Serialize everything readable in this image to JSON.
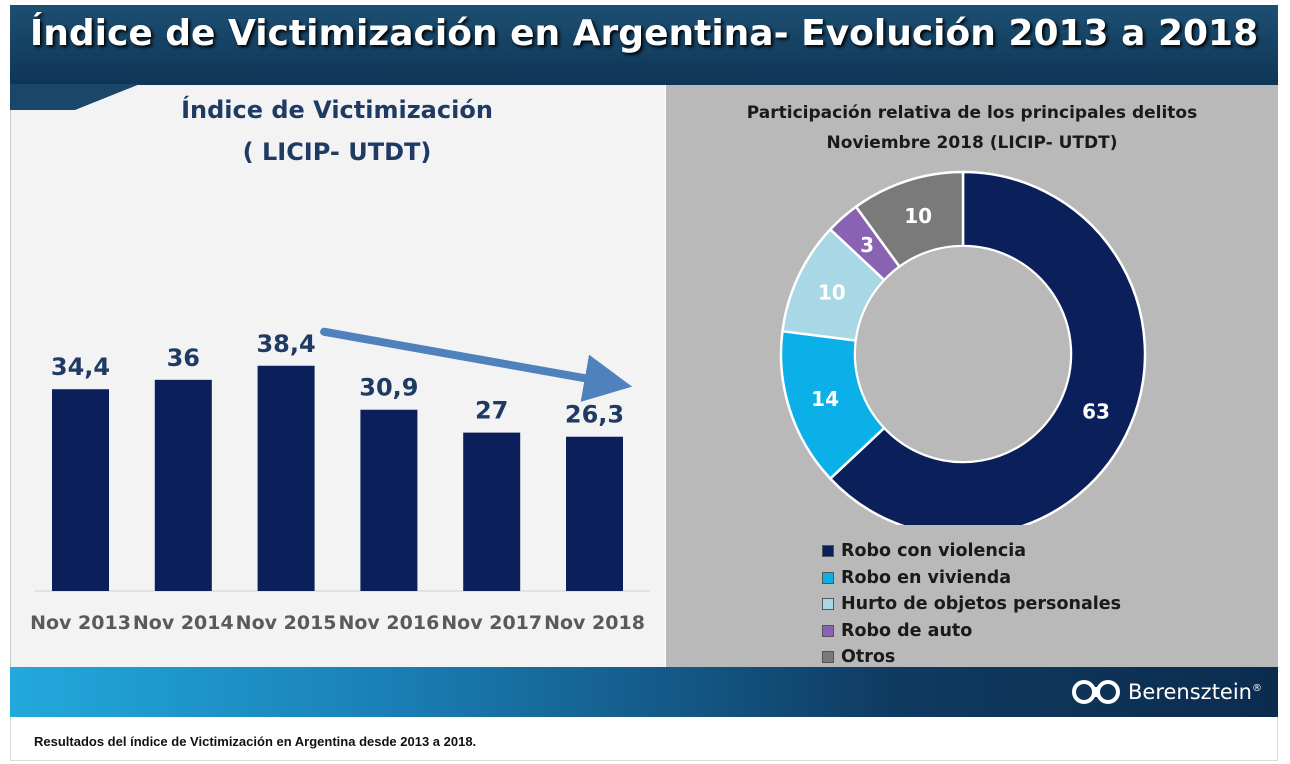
{
  "header": {
    "title": "Índice de Victimización en Argentina- Evolución 2013 a 2018"
  },
  "caption": "Resultados del índice de Victimización en Argentina desde 2013 a 2018.",
  "logo": {
    "text": "Berensztein",
    "mark": "®"
  },
  "colors": {
    "header": "#123f63",
    "bar": "#0b1f5b",
    "left_panel": "#f3f3f4",
    "right_panel": "#b9b9ba",
    "arrow": "#4f81bd"
  },
  "chart_data": [
    {
      "type": "bar",
      "title": "Índice de Victimización",
      "subtitle": "( LICIP- UTDT)",
      "categories": [
        "Nov 2013",
        "Nov 2014",
        "Nov 2015",
        "Nov 2016",
        "Nov 2017",
        "Nov 2018"
      ],
      "values": [
        34.4,
        36,
        38.4,
        30.9,
        27,
        26.3
      ],
      "value_labels": [
        "34,4",
        "36",
        "38,4",
        "30,9",
        "27",
        "26,3"
      ],
      "ylim": [
        0,
        45
      ],
      "grid": false,
      "annotation": "trend-arrow-down",
      "colors": [
        "#0b1f5b"
      ]
    },
    {
      "type": "pie",
      "variant": "donut",
      "title": "Participación relativa de los principales delitos",
      "subtitle": "Noviembre 2018 (LICIP- UTDT)",
      "categories": [
        "Robo con violencia",
        "Robo en vivienda",
        "Hurto de objetos personales",
        "Robo de auto",
        "Otros"
      ],
      "values": [
        63,
        14,
        10,
        3,
        10
      ],
      "value_labels": [
        "63",
        "14",
        "10",
        "3",
        "10"
      ],
      "colors": [
        "#0b1f5b",
        "#0bb0e8",
        "#a8d8e6",
        "#8a62b4",
        "#7a7a7a"
      ],
      "legend": "bottom"
    }
  ]
}
